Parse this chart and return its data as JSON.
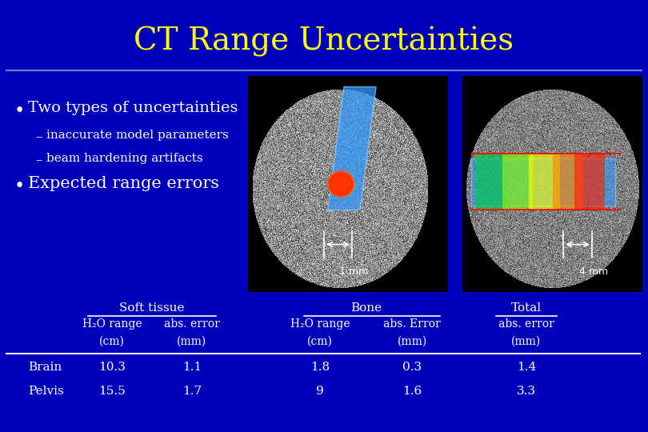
{
  "title": "CT Range Uncertainties",
  "title_color": "#FFFF00",
  "bg_color": "#0000BB",
  "text_color": "#FFFFFF",
  "line_color": "#6688CC",
  "bullet1": "Two types of uncertainties",
  "sub1": "inaccurate model parameters",
  "sub2": "beam hardening artifacts",
  "bullet2": "Expected range errors",
  "annotation_left": "1 mm",
  "annotation_right": "4 mm",
  "table_header_soft": "Soft tissue",
  "table_header_bone": "Bone",
  "table_header_total": "Total",
  "row_labels": [
    "Brain",
    "Pelvis"
  ],
  "col_sub_headers": [
    "H₂O range",
    "abs. error",
    "H₂O range",
    "abs. Error",
    "abs. error"
  ],
  "col_units": [
    "(cm)",
    "(mm)",
    "(cm)",
    "(mm)",
    "(mm)"
  ],
  "table_data": [
    [
      "10.3",
      "1.1",
      "1.8",
      "0.3",
      "1.4"
    ],
    [
      "15.5",
      "1.7",
      "9",
      "1.6",
      "3.3"
    ]
  ]
}
